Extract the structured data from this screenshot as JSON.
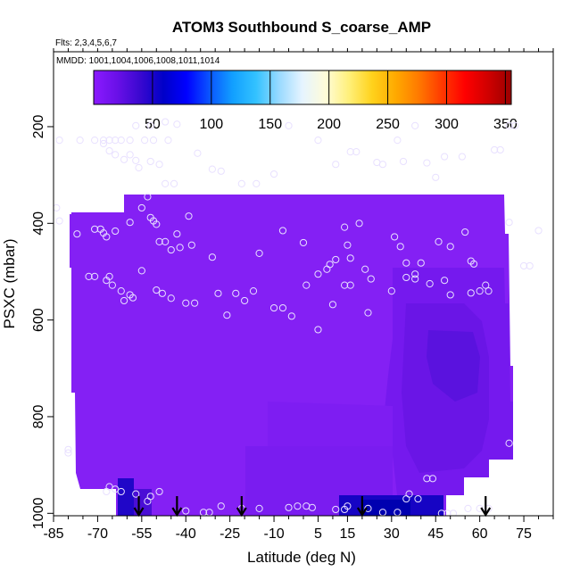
{
  "chart_data": {
    "type": "heatmap",
    "title": "ATOM3 Southbound S_coarse_AMP",
    "flights_label": "Flts: 2,3,4,5,6,7",
    "dates_label": "MMDD: 1001,1004,1006,1008,1011,1014",
    "xlabel": "Latitude (deg N)",
    "ylabel": "PSXC (mbar)",
    "xlim": [
      -85,
      85
    ],
    "ylim": [
      1005,
      45
    ],
    "x_ticks": [
      -85,
      -70,
      -55,
      -40,
      -25,
      -10,
      5,
      15,
      30,
      45,
      60,
      75
    ],
    "y_ticks": [
      200,
      400,
      600,
      800,
      1000
    ],
    "colorbar": {
      "min": 0,
      "max": 355,
      "ticks": [
        50,
        100,
        150,
        200,
        250,
        300,
        350
      ],
      "colors": [
        "#8B1AFF",
        "#6A10E8",
        "#3A08D0",
        "#0000C8",
        "#0000FF",
        "#0A55FF",
        "#12A0FF",
        "#33C2FF",
        "#9ADAFF",
        "#E6F4FF",
        "#FFFCD8",
        "#FFF07A",
        "#FFD21C",
        "#FFAA00",
        "#FF7A00",
        "#FF3A00",
        "#FF0000",
        "#D00000",
        "#9A0000"
      ]
    },
    "sample_points": [
      [
        -83,
        228
      ],
      [
        -76,
        228
      ],
      [
        -71,
        228
      ],
      [
        -68,
        228
      ],
      [
        -66,
        228
      ],
      [
        -64,
        228
      ],
      [
        -62,
        228
      ],
      [
        -59,
        228
      ],
      [
        -54,
        228
      ],
      [
        -51,
        228
      ],
      [
        -46,
        228
      ],
      [
        -68,
        235
      ],
      [
        -66,
        250
      ],
      [
        -64,
        258
      ],
      [
        -61,
        268
      ],
      [
        -59,
        258
      ],
      [
        -57,
        270
      ],
      [
        -56,
        285
      ],
      [
        -52,
        272
      ],
      [
        -49,
        278
      ],
      [
        -47,
        318
      ],
      [
        -44,
        318
      ],
      [
        -36,
        255
      ],
      [
        -31,
        288
      ],
      [
        -28,
        292
      ],
      [
        -21,
        318
      ],
      [
        -16,
        318
      ],
      [
        -10,
        298
      ],
      [
        -5,
        198
      ],
      [
        5,
        228
      ],
      [
        11,
        278
      ],
      [
        16,
        252
      ],
      [
        18,
        252
      ],
      [
        25,
        274
      ],
      [
        27,
        278
      ],
      [
        32,
        228
      ],
      [
        34,
        272
      ],
      [
        38,
        198
      ],
      [
        42,
        275
      ],
      [
        45,
        305
      ],
      [
        48,
        262
      ],
      [
        54,
        262
      ],
      [
        65,
        248
      ],
      [
        67,
        248
      ],
      [
        70,
        198
      ],
      [
        72,
        198
      ],
      [
        -57,
        198
      ],
      [
        -52,
        198
      ],
      [
        -47,
        190
      ],
      [
        -43,
        195
      ],
      [
        -84,
        368
      ],
      [
        -83,
        395
      ],
      [
        -77,
        422
      ],
      [
        -71,
        412
      ],
      [
        -69,
        412
      ],
      [
        -68,
        420
      ],
      [
        -67,
        428
      ],
      [
        -64,
        416
      ],
      [
        -59,
        398
      ],
      [
        -55,
        368
      ],
      [
        -53,
        345
      ],
      [
        -52,
        388
      ],
      [
        -51,
        395
      ],
      [
        -50,
        402
      ],
      [
        -49,
        438
      ],
      [
        -47,
        438
      ],
      [
        -45,
        455
      ],
      [
        -43,
        422
      ],
      [
        -42,
        450
      ],
      [
        -39,
        385
      ],
      [
        -38,
        445
      ],
      [
        -31,
        470
      ],
      [
        -15,
        462
      ],
      [
        -7,
        415
      ],
      [
        0,
        440
      ],
      [
        5,
        505
      ],
      [
        8,
        495
      ],
      [
        9,
        485
      ],
      [
        11,
        475
      ],
      [
        14,
        408
      ],
      [
        15,
        445
      ],
      [
        16,
        472
      ],
      [
        19,
        400
      ],
      [
        21,
        495
      ],
      [
        23,
        515
      ],
      [
        31,
        428
      ],
      [
        33,
        448
      ],
      [
        35,
        482
      ],
      [
        38,
        505
      ],
      [
        40,
        482
      ],
      [
        43,
        525
      ],
      [
        46,
        438
      ],
      [
        48,
        518
      ],
      [
        50,
        448
      ],
      [
        55,
        418
      ],
      [
        57,
        478
      ],
      [
        58,
        484
      ],
      [
        62,
        528
      ],
      [
        70,
        398
      ],
      [
        75,
        488
      ],
      [
        77,
        488
      ],
      [
        80,
        415
      ],
      [
        -73,
        510
      ],
      [
        -71,
        510
      ],
      [
        -67,
        518
      ],
      [
        -66,
        510
      ],
      [
        -65,
        528
      ],
      [
        -62,
        540
      ],
      [
        -61,
        560
      ],
      [
        -59,
        548
      ],
      [
        -58,
        554
      ],
      [
        -55,
        498
      ],
      [
        -50,
        538
      ],
      [
        -48,
        545
      ],
      [
        -45,
        555
      ],
      [
        -40,
        565
      ],
      [
        -37,
        565
      ],
      [
        -29,
        545
      ],
      [
        -26,
        590
      ],
      [
        -23,
        545
      ],
      [
        -20,
        560
      ],
      [
        -17,
        540
      ],
      [
        -10,
        575
      ],
      [
        -7,
        575
      ],
      [
        -4,
        592
      ],
      [
        1,
        528
      ],
      [
        5,
        620
      ],
      [
        10,
        568
      ],
      [
        14,
        528
      ],
      [
        16,
        528
      ],
      [
        22,
        585
      ],
      [
        30,
        540
      ],
      [
        35,
        512
      ],
      [
        38,
        515
      ],
      [
        50,
        548
      ],
      [
        57,
        544
      ],
      [
        60,
        540
      ],
      [
        63,
        540
      ],
      [
        -80,
        868
      ],
      [
        -80,
        875
      ],
      [
        -67,
        955
      ],
      [
        -66,
        945
      ],
      [
        -64,
        950
      ],
      [
        -62,
        955
      ],
      [
        -57,
        960
      ],
      [
        -53,
        975
      ],
      [
        -52,
        965
      ],
      [
        -49,
        955
      ],
      [
        -40,
        995
      ],
      [
        -34,
        998
      ],
      [
        -32,
        998
      ],
      [
        -28,
        985
      ],
      [
        -21,
        990
      ],
      [
        -15,
        990
      ],
      [
        -5,
        988
      ],
      [
        -2,
        985
      ],
      [
        1,
        985
      ],
      [
        3,
        988
      ],
      [
        11,
        992
      ],
      [
        14,
        992
      ],
      [
        15,
        985
      ],
      [
        22,
        990
      ],
      [
        27,
        998
      ],
      [
        32,
        998
      ],
      [
        35,
        970
      ],
      [
        36,
        960
      ],
      [
        39,
        970
      ],
      [
        42,
        928
      ],
      [
        44,
        928
      ],
      [
        47,
        1000
      ],
      [
        49,
        1000
      ],
      [
        51,
        1000
      ],
      [
        56,
        990
      ],
      [
        60,
        990
      ],
      [
        63,
        990
      ],
      [
        70,
        855
      ]
    ],
    "arrow_latitudes": [
      -56,
      -43,
      -21,
      20,
      62
    ]
  }
}
